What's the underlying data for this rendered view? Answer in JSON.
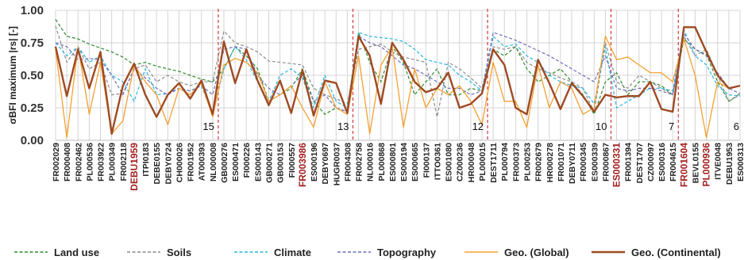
{
  "chart_data": {
    "type": "line",
    "ylabel": "σBFI maximum |rs| [-]",
    "ylim": [
      0,
      1
    ],
    "yticks": [
      "0.00",
      "0.25",
      "0.50",
      "0.75",
      "1.00"
    ],
    "grid": "vertical and horizontal",
    "legend_position": "bottom",
    "x": [
      "FR002029",
      "FR000408",
      "FR002462",
      "PL000536",
      "FR003922",
      "PL000349",
      "FR002118",
      "DEBU1959",
      "ITPI0183",
      "DEBE0155",
      "DEBY0724",
      "CH000026",
      "FR001952",
      "AT000393",
      "NL000008",
      "GB000276",
      "ES000471",
      "FI000226",
      "ES000143",
      "GB000271",
      "GB000153",
      "FI000557",
      "FR003986",
      "ES000196",
      "DEBY0697",
      "HUGR0037",
      "FR004308",
      "FR002758",
      "NL000016",
      "PL000868",
      "ES000801",
      "ES000194",
      "ES000665",
      "FI000137",
      "ITTO0361",
      "ES001080",
      "CZ000236",
      "HR000048",
      "PL000015",
      "DEST1711",
      "PL000794",
      "FR000373",
      "PL000253",
      "FR002679",
      "HR000278",
      "FR001071",
      "DEBY0711",
      "FR000345",
      "ES000339",
      "FR000867",
      "ES000331",
      "FR001394",
      "DEST1707",
      "CZ000097",
      "ES000316",
      "FR004615",
      "FR001604",
      "BEVL0155",
      "PL000936",
      "ITVE0048",
      "DEBU1953",
      "ES000313"
    ],
    "highlighted_labels": [
      "DEBU1959",
      "FR003986",
      "ES000331",
      "FR001604",
      "PL000936"
    ],
    "group_boundaries_after_index": [
      14,
      26,
      38,
      49,
      55
    ],
    "groups": [
      {
        "label": "15",
        "start": 0,
        "end": 14
      },
      {
        "label": "13",
        "start": 15,
        "end": 26
      },
      {
        "label": "12",
        "start": 27,
        "end": 38
      },
      {
        "label": "10",
        "start": 39,
        "end": 49
      },
      {
        "label": "7",
        "start": 50,
        "end": 55
      },
      {
        "label": "6",
        "start": 56,
        "end": 61
      }
    ],
    "series": [
      {
        "name": "Land use",
        "color": "#2e8b2e",
        "style": "dashed",
        "width": 1.2,
        "values": [
          0.93,
          0.8,
          0.78,
          0.74,
          0.71,
          0.68,
          0.64,
          0.58,
          0.6,
          0.57,
          0.55,
          0.53,
          0.5,
          0.47,
          0.45,
          0.55,
          0.72,
          0.65,
          0.55,
          0.3,
          0.35,
          0.4,
          0.55,
          0.3,
          0.2,
          0.25,
          0.22,
          0.83,
          0.6,
          0.45,
          0.72,
          0.6,
          0.35,
          0.45,
          0.55,
          0.35,
          0.35,
          0.4,
          0.38,
          0.7,
          0.65,
          0.72,
          0.55,
          0.45,
          0.5,
          0.55,
          0.45,
          0.35,
          0.2,
          0.45,
          0.52,
          0.35,
          0.45,
          0.45,
          0.42,
          0.35,
          0.78,
          0.7,
          0.66,
          0.45,
          0.3,
          0.36
        ]
      },
      {
        "name": "Soils",
        "color": "#8c8c8c",
        "style": "dashed",
        "width": 1.2,
        "values": [
          0.88,
          0.6,
          0.72,
          0.55,
          0.6,
          0.35,
          0.36,
          0.55,
          0.58,
          0.45,
          0.5,
          0.45,
          0.42,
          0.45,
          0.45,
          0.84,
          0.75,
          0.72,
          0.68,
          0.61,
          0.6,
          0.59,
          0.58,
          0.4,
          0.35,
          0.32,
          0.28,
          0.7,
          0.72,
          0.74,
          0.68,
          0.64,
          0.62,
          0.6,
          0.18,
          0.6,
          0.55,
          0.48,
          0.4,
          0.72,
          0.7,
          0.72,
          0.6,
          0.55,
          0.52,
          0.48,
          0.45,
          0.4,
          0.22,
          0.75,
          0.45,
          0.4,
          0.5,
          0.45,
          0.4,
          0.35,
          0.8,
          0.65,
          0.7,
          0.5,
          0.3,
          0.35
        ]
      },
      {
        "name": "Climate",
        "color": "#29b6e6",
        "style": "dashed",
        "width": 1.2,
        "values": [
          0.75,
          0.65,
          0.72,
          0.6,
          0.65,
          0.5,
          0.45,
          0.3,
          0.55,
          0.35,
          0.36,
          0.4,
          0.38,
          0.42,
          0.2,
          0.55,
          0.72,
          0.62,
          0.45,
          0.3,
          0.5,
          0.55,
          0.48,
          0.25,
          0.5,
          0.3,
          0.25,
          0.83,
          0.8,
          0.79,
          0.78,
          0.76,
          0.7,
          0.62,
          0.6,
          0.58,
          0.5,
          0.45,
          0.38,
          0.8,
          0.72,
          0.74,
          0.65,
          0.6,
          0.5,
          0.45,
          0.42,
          0.4,
          0.28,
          0.72,
          0.25,
          0.3,
          0.35,
          0.4,
          0.4,
          0.38,
          0.85,
          0.65,
          0.58,
          0.42,
          0.35,
          0.34
        ]
      },
      {
        "name": "Topography",
        "color": "#6f6fb8",
        "style": "dashed",
        "width": 1.2,
        "values": [
          0.75,
          0.72,
          0.62,
          0.63,
          0.62,
          0.5,
          0.35,
          0.55,
          0.48,
          0.4,
          0.35,
          0.4,
          0.38,
          0.42,
          0.35,
          0.7,
          0.72,
          0.7,
          0.5,
          0.4,
          0.35,
          0.42,
          0.5,
          0.3,
          0.35,
          0.25,
          0.22,
          0.8,
          0.75,
          0.72,
          0.65,
          0.58,
          0.55,
          0.5,
          0.45,
          0.4,
          0.4,
          0.35,
          0.38,
          0.83,
          0.8,
          0.77,
          0.73,
          0.69,
          0.65,
          0.6,
          0.55,
          0.5,
          0.45,
          0.65,
          0.4,
          0.38,
          0.4,
          0.4,
          0.38,
          0.35,
          0.82,
          0.7,
          0.65,
          0.52,
          0.4,
          0.36
        ]
      },
      {
        "name": "Geo. (Global)",
        "color": "#f5a030",
        "style": "solid",
        "width": 1.3,
        "values": [
          0.7,
          0.02,
          0.72,
          0.2,
          0.6,
          0.05,
          0.15,
          0.58,
          0.45,
          0.35,
          0.12,
          0.4,
          0.35,
          0.44,
          0.18,
          0.58,
          0.63,
          0.6,
          0.52,
          0.3,
          0.35,
          0.42,
          0.25,
          0.1,
          0.45,
          0.25,
          0.2,
          0.65,
          0.05,
          0.58,
          0.72,
          0.1,
          0.55,
          0.25,
          0.4,
          0.35,
          0.42,
          0.3,
          0.12,
          0.6,
          0.3,
          0.3,
          0.1,
          0.58,
          0.25,
          0.45,
          0.4,
          0.2,
          0.25,
          0.8,
          0.62,
          0.64,
          0.58,
          0.52,
          0.52,
          0.45,
          0.78,
          0.5,
          0.02,
          0.45,
          0.4,
          0.42
        ]
      },
      {
        "name": "Geo. (Continental)",
        "color": "#9e4a22",
        "style": "solid",
        "width": 2.4,
        "values": [
          0.72,
          0.34,
          0.7,
          0.4,
          0.68,
          0.05,
          0.42,
          0.59,
          0.35,
          0.18,
          0.35,
          0.44,
          0.32,
          0.46,
          0.2,
          0.76,
          0.44,
          0.7,
          0.46,
          0.27,
          0.46,
          0.21,
          0.54,
          0.19,
          0.46,
          0.44,
          0.21,
          0.8,
          0.65,
          0.28,
          0.75,
          0.62,
          0.45,
          0.37,
          0.4,
          0.52,
          0.25,
          0.28,
          0.36,
          0.7,
          0.58,
          0.25,
          0.2,
          0.62,
          0.44,
          0.24,
          0.44,
          0.34,
          0.22,
          0.35,
          0.33,
          0.34,
          0.34,
          0.45,
          0.24,
          0.22,
          0.87,
          0.87,
          0.68,
          0.5,
          0.4,
          0.42
        ]
      }
    ]
  }
}
